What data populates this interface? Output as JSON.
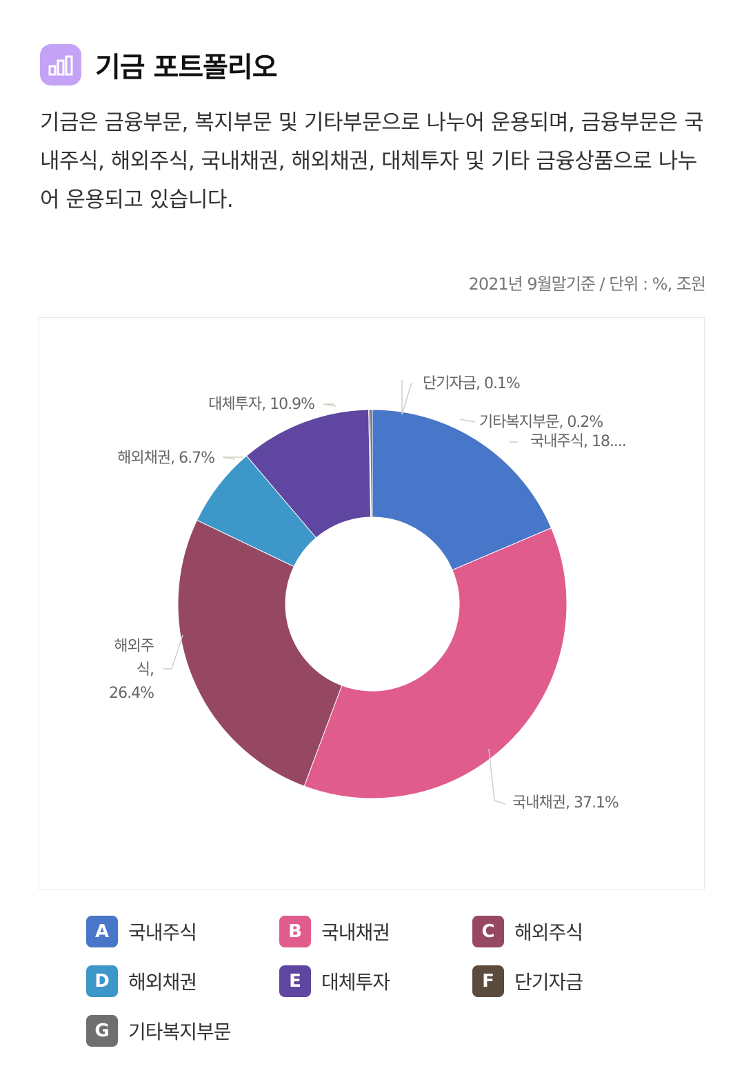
{
  "header": {
    "title": "기금 포트폴리오",
    "icon": "bar-chart-icon"
  },
  "description": "기금은 금융부문, 복지부문 및 기타부문으로 나누어 운용되며, 금융부문은 국내주식, 해외주식, 국내채권, 해외채권, 대체투자 및 기타 금융상품으로 나누어 운용되고 있습니다.",
  "unit_note": "2021년 9월말기준 / 단위 : %, 조원",
  "chart_data": {
    "type": "pie",
    "donut": true,
    "slices": [
      {
        "letter": "A",
        "name": "국내주식",
        "value": 18.6,
        "color": "#4876c8",
        "label": "국내주식, 18...."
      },
      {
        "letter": "B",
        "name": "국내채권",
        "value": 37.1,
        "color": "#e05c8c",
        "label": "국내채권, 37.1%"
      },
      {
        "letter": "C",
        "name": "해외주식",
        "value": 26.4,
        "color": "#964862",
        "label": "해외주식, 26.4%"
      },
      {
        "letter": "D",
        "name": "해외채권",
        "value": 6.7,
        "color": "#3d97c9",
        "label": "해외채권, 6.7%"
      },
      {
        "letter": "E",
        "name": "대체투자",
        "value": 10.9,
        "color": "#5f46a0",
        "label": "대체투자, 10.9%"
      },
      {
        "letter": "F",
        "name": "단기자금",
        "value": 0.1,
        "color": "#5a4b3d",
        "label": "단기자금, 0.1%"
      },
      {
        "letter": "G",
        "name": "기타복지부문",
        "value": 0.2,
        "color": "#6f6f6f",
        "label": "기타복지부문, 0.2%"
      }
    ]
  }
}
